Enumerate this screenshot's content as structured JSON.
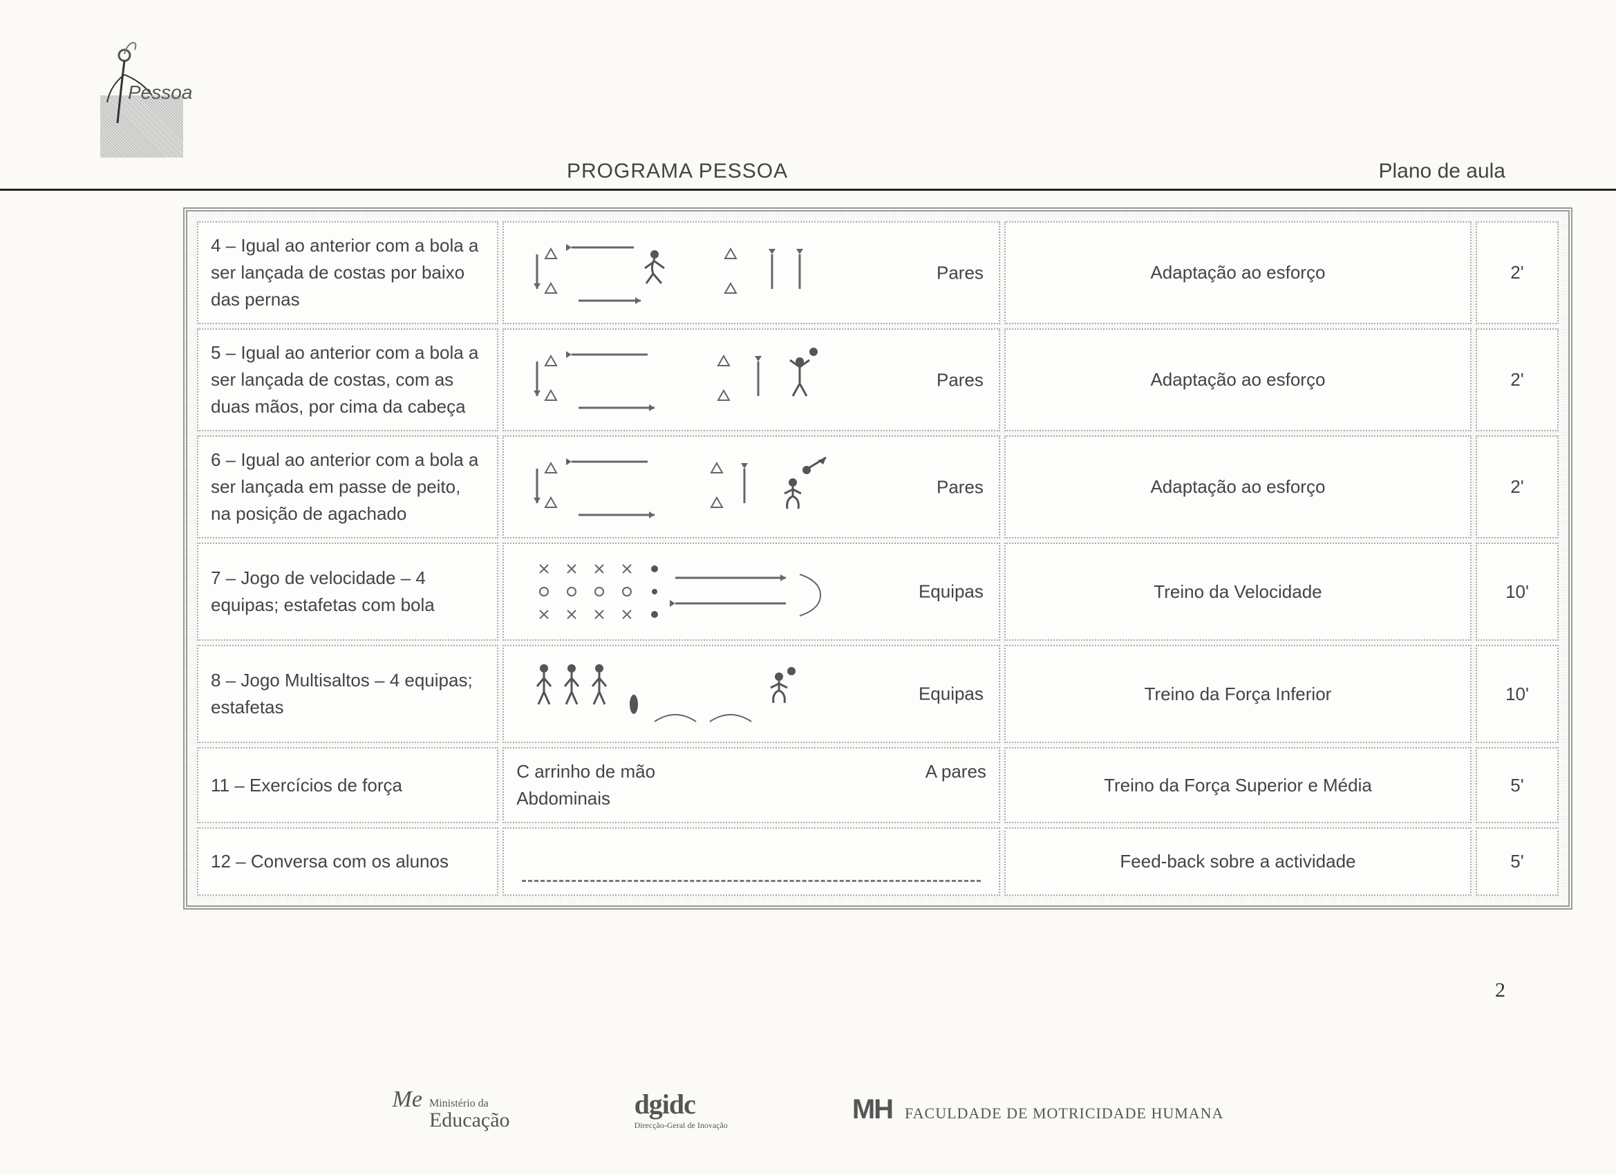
{
  "logo_caption": "Pessoa",
  "header": {
    "title": "PROGRAMA PESSOA",
    "right": "Plano de aula"
  },
  "rows": [
    {
      "desc": "4 – Igual ao anterior com a bola a ser lançada de costas por baixo das pernas",
      "group": "Pares",
      "objective": "Adaptação ao esforço",
      "time": "2'",
      "sketch": "row4"
    },
    {
      "desc": "5 – Igual ao anterior com a bola a ser lançada de costas, com as duas mãos, por cima da cabeça",
      "group": "Pares",
      "objective": "Adaptação ao esforço",
      "time": "2'",
      "sketch": "row5"
    },
    {
      "desc": "6 – Igual ao  anterior com a bola a ser lançada em passe de peito, na posição de  agachado",
      "group": "Pares",
      "objective": "Adaptação ao esforço",
      "time": "2'",
      "sketch": "row6"
    },
    {
      "desc": "7 – Jogo de velocidade – 4 equipas; estafetas com bola",
      "group": "Equipas",
      "objective": "Treino da Velocidade",
      "time": "10'",
      "sketch": "row7"
    },
    {
      "desc": "8 – Jogo Multisaltos – 4 equipas; estafetas",
      "group": "Equipas",
      "objective": "Treino da Força Inferior",
      "time": "10'",
      "sketch": "row8"
    },
    {
      "desc": "11 – Exercícios de força",
      "group": "A pares",
      "detail_a": "C arrinho de mão",
      "detail_b": "Abdominais",
      "objective": "Treino da Força Superior e Média",
      "time": "5'",
      "sketch": "text"
    },
    {
      "desc": "12 – Conversa com os alunos",
      "group": "",
      "objective": "Feed-back sobre  a actividade",
      "time": "5'",
      "sketch": "dash"
    }
  ],
  "page_number": "2",
  "footer": {
    "me": "Me",
    "edu_small": "Ministério da",
    "edu_big": "Educação",
    "dg": "dgidc",
    "dg_sub": "Direcção-Geral de Inovação",
    "mh_big": "MH",
    "mh_small": "FACULDADE DE MOTRICIDADE HUMANA"
  },
  "style": {
    "font": "Comic Sans MS",
    "text_color": "#444",
    "border_color": "#999",
    "dotted_color": "#aaa",
    "bg": "#fbfaf6",
    "cell_bg": "#fdfdfb",
    "sketch_stroke": "#666",
    "sketch_fill": "#888"
  }
}
